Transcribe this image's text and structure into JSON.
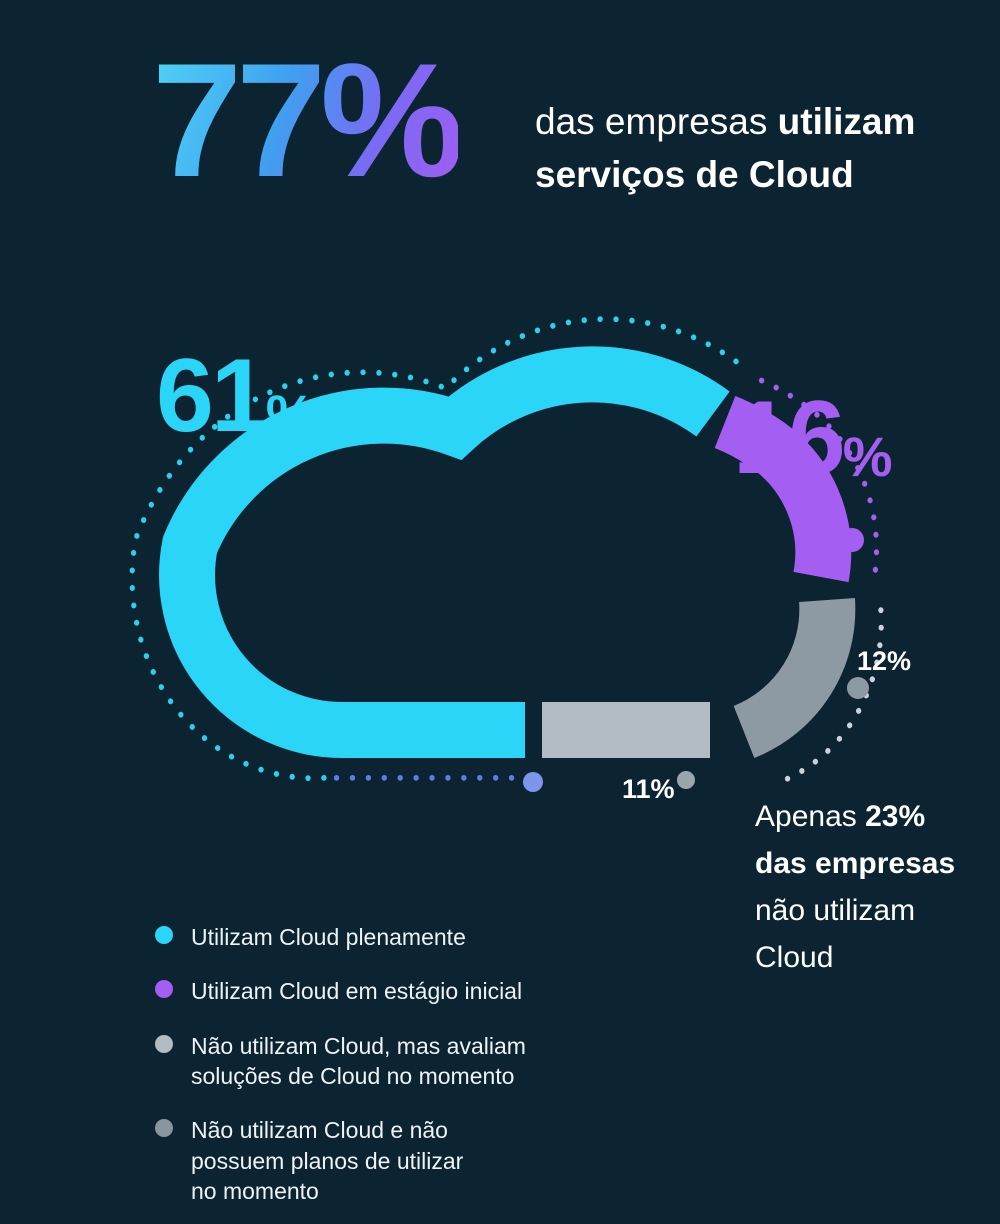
{
  "background_color": "#0c2332",
  "title": {
    "big": "77%",
    "sub_normal": "das empresas ",
    "sub_bold1": "utilizam",
    "sub_bold2": "serviços de Cloud"
  },
  "chart_data": {
    "type": "pie",
    "variant": "cloud-shaped donut infographic",
    "title": "77% das empresas utilizam serviços de Cloud",
    "unit": "%",
    "segments": [
      {
        "label": "Utilizam Cloud plenamente",
        "value": 61,
        "color": "#2bd5f8"
      },
      {
        "label": "Utilizam Cloud em estágio inicial",
        "value": 16,
        "color": "#a55ef2"
      },
      {
        "label": "Não utilizam Cloud e não possuem planos de utilizar no momento",
        "value": 12,
        "color": "#8d99a3"
      },
      {
        "label": "Não utilizam Cloud, mas avaliam soluções de Cloud no momento",
        "value": 11,
        "color": "#b2bcc2"
      }
    ],
    "annotation": "Apenas 23% das empresas não utilizam Cloud",
    "legend_position": "bottom-left"
  },
  "labels": {
    "seg61_num": "61",
    "seg16_num": "16",
    "pct_symbol": "%",
    "seg12": "12%",
    "seg11": "11%"
  },
  "callout": {
    "normal1": "Apenas ",
    "bold1": "23% das empresas",
    "normal2": " não utilizam Cloud"
  },
  "legend": {
    "items": [
      {
        "text": "Utilizam Cloud plenamente",
        "color": "#2bd5f8"
      },
      {
        "text": "Utilizam Cloud em estágio inicial",
        "color": "#a55ef2"
      },
      {
        "text": "Não utilizam Cloud, mas avaliam\nsoluções de Cloud no momento",
        "color": "#b2bcc2"
      },
      {
        "text": "Não utilizam Cloud e não\npossuem planos de utilizar\nno momento",
        "color": "#8b959d"
      }
    ]
  },
  "decoration": {
    "ring_dot_colors": {
      "left": "#2bd0ec",
      "bottom": "#5d7ee2",
      "top_right": "#a55ef2",
      "right": "#c9d3d9"
    },
    "accent_dot_colors": [
      "#7d95ea",
      "#a55ef2",
      "#8d99a3",
      "#9aa5ad"
    ]
  }
}
